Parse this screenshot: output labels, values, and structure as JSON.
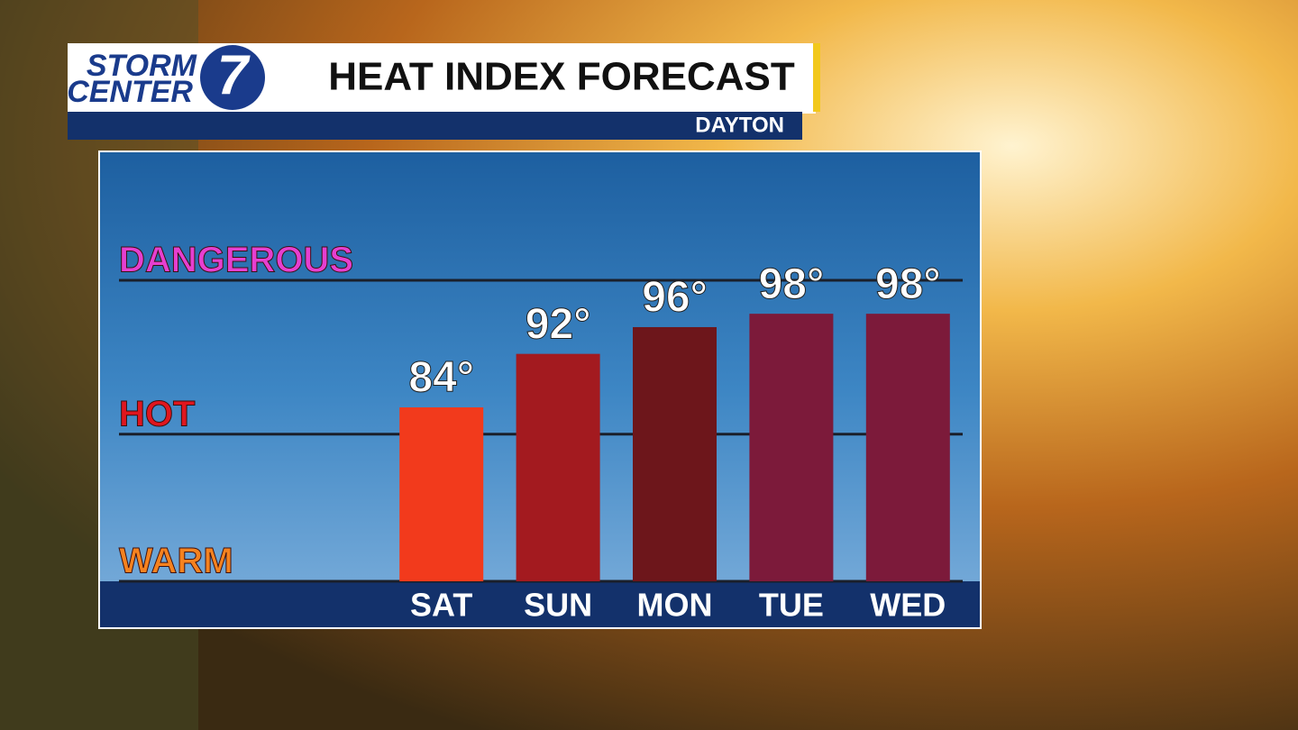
{
  "branding": {
    "line1": "STORM",
    "line2": "CENTER",
    "number": "7"
  },
  "chart_data": {
    "type": "bar",
    "title": "HEAT INDEX FORECAST",
    "subtitle": "DAYTON",
    "categories": [
      "SAT",
      "SUN",
      "MON",
      "TUE",
      "WED"
    ],
    "values": [
      84,
      92,
      96,
      98,
      98
    ],
    "value_labels": [
      "84°",
      "92°",
      "96°",
      "98°",
      "98°"
    ],
    "colors": [
      "#f23a1c",
      "#a31a1f",
      "#6d161b",
      "#7c1a3a",
      "#7c1a3a"
    ],
    "ylim": [
      58,
      122
    ],
    "yticks": [
      {
        "value": 58,
        "label": "WARM"
      },
      {
        "value": 80,
        "label": "HOT"
      },
      {
        "value": 103,
        "label": "DANGEROUS"
      }
    ],
    "ytick_colors": [
      "#f5821f",
      "#e0161e",
      "#e63fd0"
    ],
    "grid": true
  }
}
